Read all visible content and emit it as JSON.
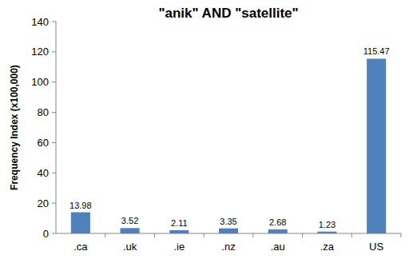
{
  "chart_data": {
    "type": "bar",
    "title": "\"anik\" AND \"satellite\"",
    "y_label": "Frequency Index (x100,000)",
    "categories": [
      ".ca",
      ".uk",
      ".ie",
      ".nz",
      ".au",
      ".za",
      "US"
    ],
    "values": [
      13.98,
      3.52,
      2.11,
      3.35,
      2.68,
      1.23,
      115.47
    ],
    "color": "#4f81bd",
    "ylim": [
      0,
      140
    ],
    "yticks": [
      0,
      20,
      40,
      60,
      80,
      100,
      120,
      140
    ],
    "grid": false,
    "data_labels": true
  }
}
